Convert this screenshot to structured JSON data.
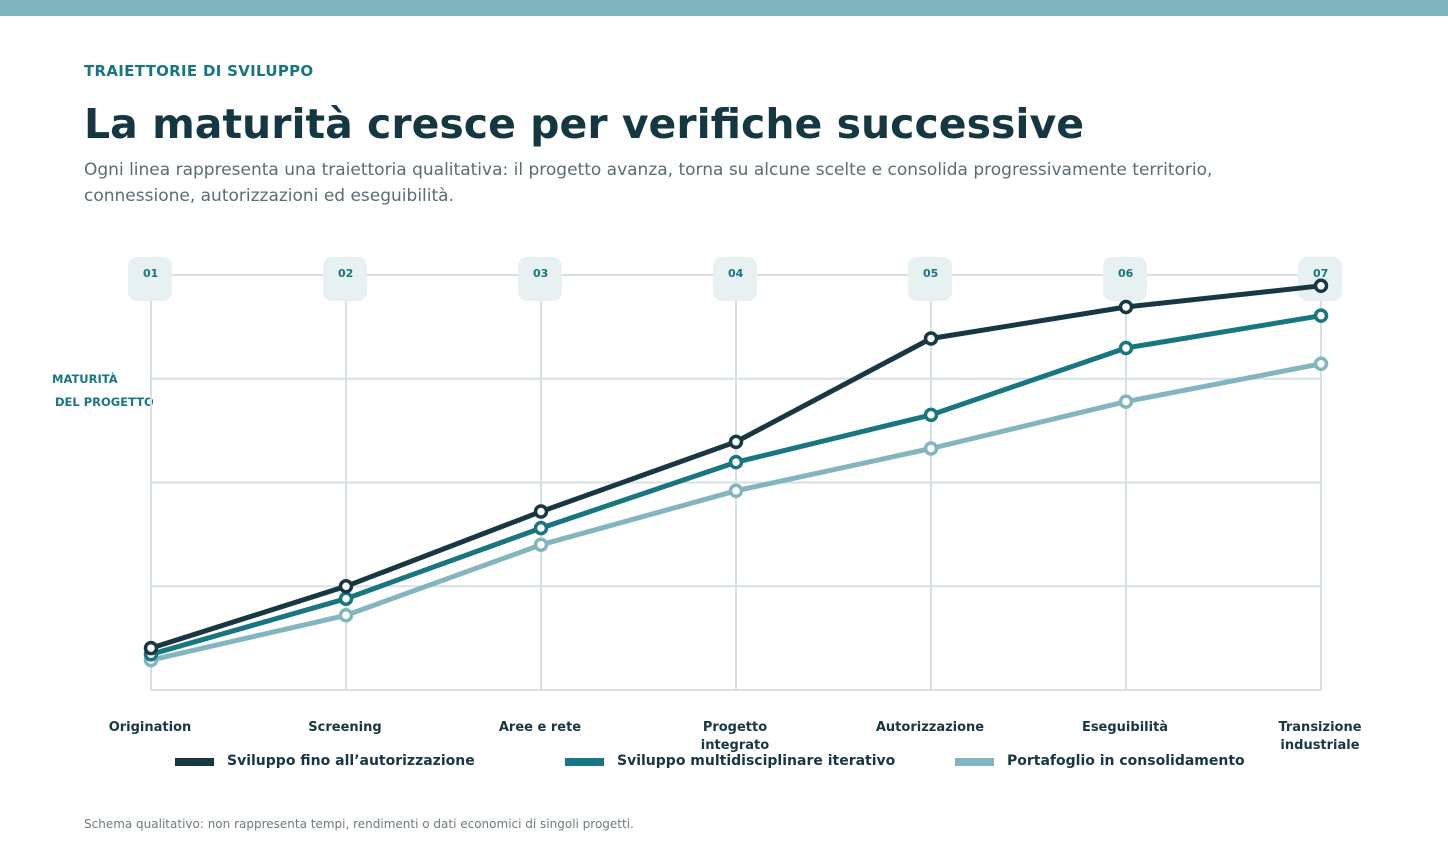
{
  "header": {
    "eyebrow": "TRAIETTORIE DI SVILUPPO",
    "title": "La maturità cresce per verifiche successive",
    "subtitle": "Ogni linea rappresenta una traiettoria qualitativa: il progetto avanza, torna su alcune scelte e consolida progressivamente territorio, connessione, autorizzazioni ed eseguibilità."
  },
  "chart_data": {
    "type": "line",
    "title": "",
    "xlabel": "",
    "ylabel": "MATURITÀ DEL PROGETTO",
    "ylabel_lines": [
      "MATURITÀ",
      "DEL PROGETTO"
    ],
    "stage_numbers": [
      "01",
      "02",
      "03",
      "04",
      "05",
      "06",
      "07"
    ],
    "categories": [
      "Origination",
      "Screening",
      "Aree e rete",
      "Progetto integrato",
      "Autorizzazione",
      "Eseguibilità",
      "Transizione industriale"
    ],
    "category_lines": [
      [
        "Origination"
      ],
      [
        "Screening"
      ],
      [
        "Aree e rete"
      ],
      [
        "Progetto",
        "integrato"
      ],
      [
        "Autorizzazione"
      ],
      [
        "Eseguibilità"
      ],
      [
        "Transizione",
        "industriale"
      ]
    ],
    "ylim": [
      0,
      100
    ],
    "grid": true,
    "legend_position": "bottom",
    "series": [
      {
        "name": "Sviluppo fino all’autorizzazione",
        "color": "#173842",
        "values": [
          10.1,
          25.0,
          43.0,
          59.8,
          84.7,
          92.3,
          97.4
        ]
      },
      {
        "name": "Sviluppo multidisciplinare iterativo",
        "color": "#177680",
        "values": [
          8.6,
          22.0,
          39.0,
          54.9,
          66.3,
          82.4,
          90.2
        ]
      },
      {
        "name": "Portafoglio in consolidamento",
        "color": "#82b5be",
        "values": [
          7.2,
          18.0,
          35.0,
          48.0,
          58.2,
          69.5,
          78.6
        ]
      }
    ]
  },
  "footnote": "Schema qualitativo: non rappresenta tempi, rendimenti o dati economici di singoli progetti."
}
